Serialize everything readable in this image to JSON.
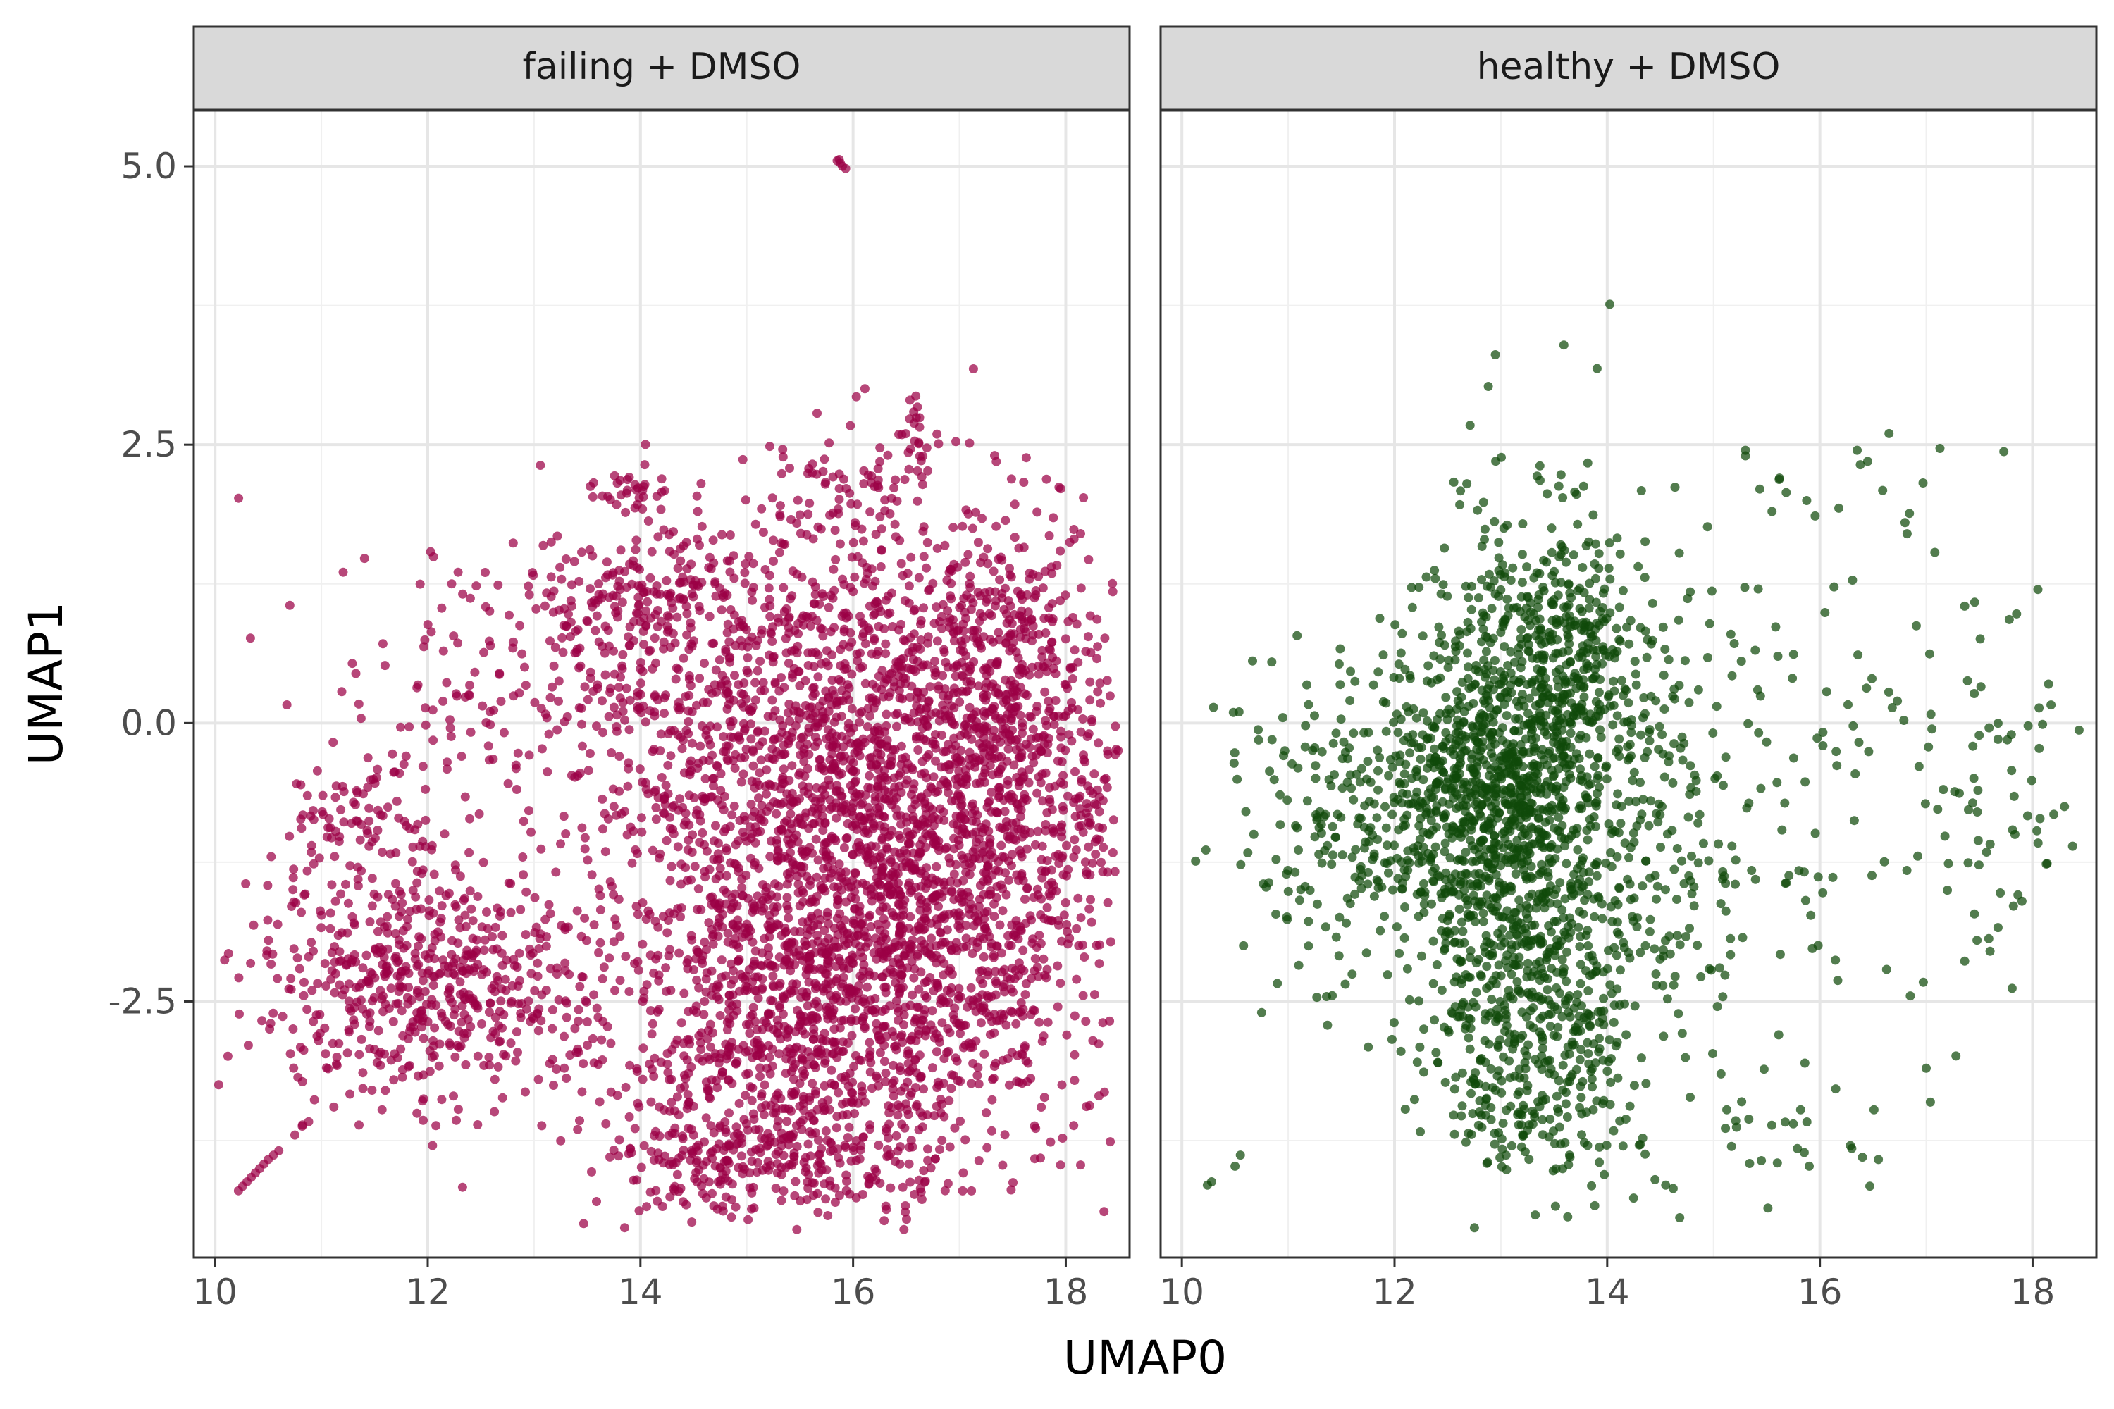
{
  "chart_data": {
    "type": "scatter",
    "xlabel": "UMAP0",
    "ylabel": "UMAP1",
    "xlim": [
      9.8,
      18.6
    ],
    "ylim": [
      -4.8,
      5.5
    ],
    "x_ticks": [
      10,
      12,
      14,
      16,
      18
    ],
    "x_tick_labels": [
      "10",
      "12",
      "14",
      "16",
      "18"
    ],
    "y_ticks": [
      -2.5,
      0.0,
      2.5,
      5.0
    ],
    "y_tick_labels": [
      "-2.5",
      "0.0",
      "2.5",
      "5.0"
    ],
    "grid": true,
    "legend": "none",
    "panels": [
      {
        "strip_label": "failing + DMSO",
        "color": "#9B0045",
        "clusters": [
          {
            "x": 16.4,
            "y": -1.3,
            "sx": 1.1,
            "sy": 1.35,
            "n": 2200
          },
          {
            "x": 15.4,
            "y": -2.6,
            "sx": 0.85,
            "sy": 0.9,
            "n": 700
          },
          {
            "x": 15.1,
            "y": 0.3,
            "sx": 0.8,
            "sy": 0.9,
            "n": 500
          },
          {
            "x": 17.5,
            "y": 0.3,
            "sx": 0.55,
            "sy": 0.8,
            "n": 500
          },
          {
            "x": 12.0,
            "y": -2.3,
            "sx": 0.85,
            "sy": 0.55,
            "n": 600
          },
          {
            "x": 13.2,
            "y": 0.3,
            "sx": 1.0,
            "sy": 0.7,
            "n": 230
          },
          {
            "x": 11.4,
            "y": -0.9,
            "sx": 0.35,
            "sy": 0.35,
            "n": 80
          },
          {
            "x": 14.9,
            "y": -3.9,
            "sx": 0.55,
            "sy": 0.25,
            "n": 180
          },
          {
            "x": 14.0,
            "y": 1.15,
            "sx": 0.45,
            "sy": 0.25,
            "n": 110
          },
          {
            "x": 13.9,
            "y": 2.05,
            "sx": 0.2,
            "sy": 0.1,
            "n": 30
          },
          {
            "x": 15.9,
            "y": 2.05,
            "sx": 0.3,
            "sy": 0.2,
            "n": 40
          },
          {
            "x": 16.6,
            "y": 2.5,
            "sx": 0.08,
            "sy": 0.22,
            "n": 25
          },
          {
            "x": 16.3,
            "y": -3.95,
            "sx": 0.25,
            "sy": 0.22,
            "n": 30
          }
        ],
        "fixed_points": [
          {
            "x": 15.85,
            "y": 5.05
          },
          {
            "x": 15.88,
            "y": 5.03
          },
          {
            "x": 15.9,
            "y": 5.0
          },
          {
            "x": 15.93,
            "y": 4.98
          },
          {
            "x": 15.87,
            "y": 5.06
          },
          {
            "x": 10.22,
            "y": -4.2
          },
          {
            "x": 10.26,
            "y": -4.16
          },
          {
            "x": 10.3,
            "y": -4.12
          },
          {
            "x": 10.34,
            "y": -4.08
          },
          {
            "x": 10.38,
            "y": -4.04
          },
          {
            "x": 10.42,
            "y": -4.0
          },
          {
            "x": 10.46,
            "y": -3.96
          },
          {
            "x": 10.5,
            "y": -3.92
          },
          {
            "x": 10.55,
            "y": -3.88
          },
          {
            "x": 10.6,
            "y": -3.84
          },
          {
            "x": 10.75,
            "y": -3.7
          },
          {
            "x": 10.82,
            "y": -3.62
          },
          {
            "x": 10.88,
            "y": -3.58
          }
        ]
      },
      {
        "strip_label": "healthy + DMSO",
        "color": "#0F4A0A",
        "clusters": [
          {
            "x": 13.2,
            "y": -1.0,
            "sx": 0.55,
            "sy": 1.35,
            "n": 1100
          },
          {
            "x": 12.7,
            "y": -0.7,
            "sx": 0.45,
            "sy": 0.5,
            "n": 350
          },
          {
            "x": 13.5,
            "y": 0.7,
            "sx": 0.45,
            "sy": 0.55,
            "n": 250
          },
          {
            "x": 13.3,
            "y": -3.1,
            "sx": 0.45,
            "sy": 0.45,
            "n": 200
          },
          {
            "x": 11.6,
            "y": -0.9,
            "sx": 0.55,
            "sy": 0.7,
            "n": 220
          },
          {
            "x": 14.5,
            "y": -0.9,
            "sx": 0.6,
            "sy": 1.2,
            "n": 200
          },
          {
            "x": 16.0,
            "y": -0.5,
            "sx": 1.2,
            "sy": 1.5,
            "n": 110
          },
          {
            "x": 17.7,
            "y": -1.0,
            "sx": 0.45,
            "sy": 0.7,
            "n": 45
          },
          {
            "x": 15.8,
            "y": -3.7,
            "sx": 0.6,
            "sy": 0.3,
            "n": 18
          }
        ],
        "fixed_points": [
          {
            "x": 10.24,
            "y": -4.15
          },
          {
            "x": 10.28,
            "y": -4.12
          },
          {
            "x": 10.55,
            "y": -3.88
          },
          {
            "x": 10.5,
            "y": -3.98
          },
          {
            "x": 10.58,
            "y": -2.0
          },
          {
            "x": 10.75,
            "y": -2.6
          },
          {
            "x": 15.3,
            "y": 2.4
          },
          {
            "x": 15.3,
            "y": 2.45
          },
          {
            "x": 15.62,
            "y": 2.2
          },
          {
            "x": 15.55,
            "y": 1.9
          },
          {
            "x": 16.35,
            "y": 2.45
          },
          {
            "x": 16.45,
            "y": 2.35
          },
          {
            "x": 16.38,
            "y": 2.32
          },
          {
            "x": 16.65,
            "y": 2.6
          },
          {
            "x": 16.8,
            "y": 1.8
          },
          {
            "x": 16.82,
            "y": 1.7
          },
          {
            "x": 18.05,
            "y": 1.2
          },
          {
            "x": 17.85,
            "y": 0.98
          },
          {
            "x": 18.15,
            "y": 0.35
          },
          {
            "x": 18.3,
            "y": -0.75
          },
          {
            "x": 18.2,
            "y": -0.82
          },
          {
            "x": 17.9,
            "y": -1.6
          },
          {
            "x": 17.6,
            "y": -2.05
          },
          {
            "x": 17.0,
            "y": -3.1
          },
          {
            "x": 16.85,
            "y": -2.45
          },
          {
            "x": 14.45,
            "y": -4.1
          },
          {
            "x": 14.55,
            "y": -4.15
          },
          {
            "x": 14.62,
            "y": -4.18
          },
          {
            "x": 16.3,
            "y": -3.82
          },
          {
            "x": 16.4,
            "y": -3.9
          },
          {
            "x": 16.55,
            "y": -3.92
          },
          {
            "x": 15.75,
            "y": -3.6
          },
          {
            "x": 15.9,
            "y": -3.98
          },
          {
            "x": 15.6,
            "y": -3.95
          },
          {
            "x": 15.45,
            "y": -3.93
          },
          {
            "x": 13.65,
            "y": -3.9
          }
        ]
      }
    ]
  }
}
